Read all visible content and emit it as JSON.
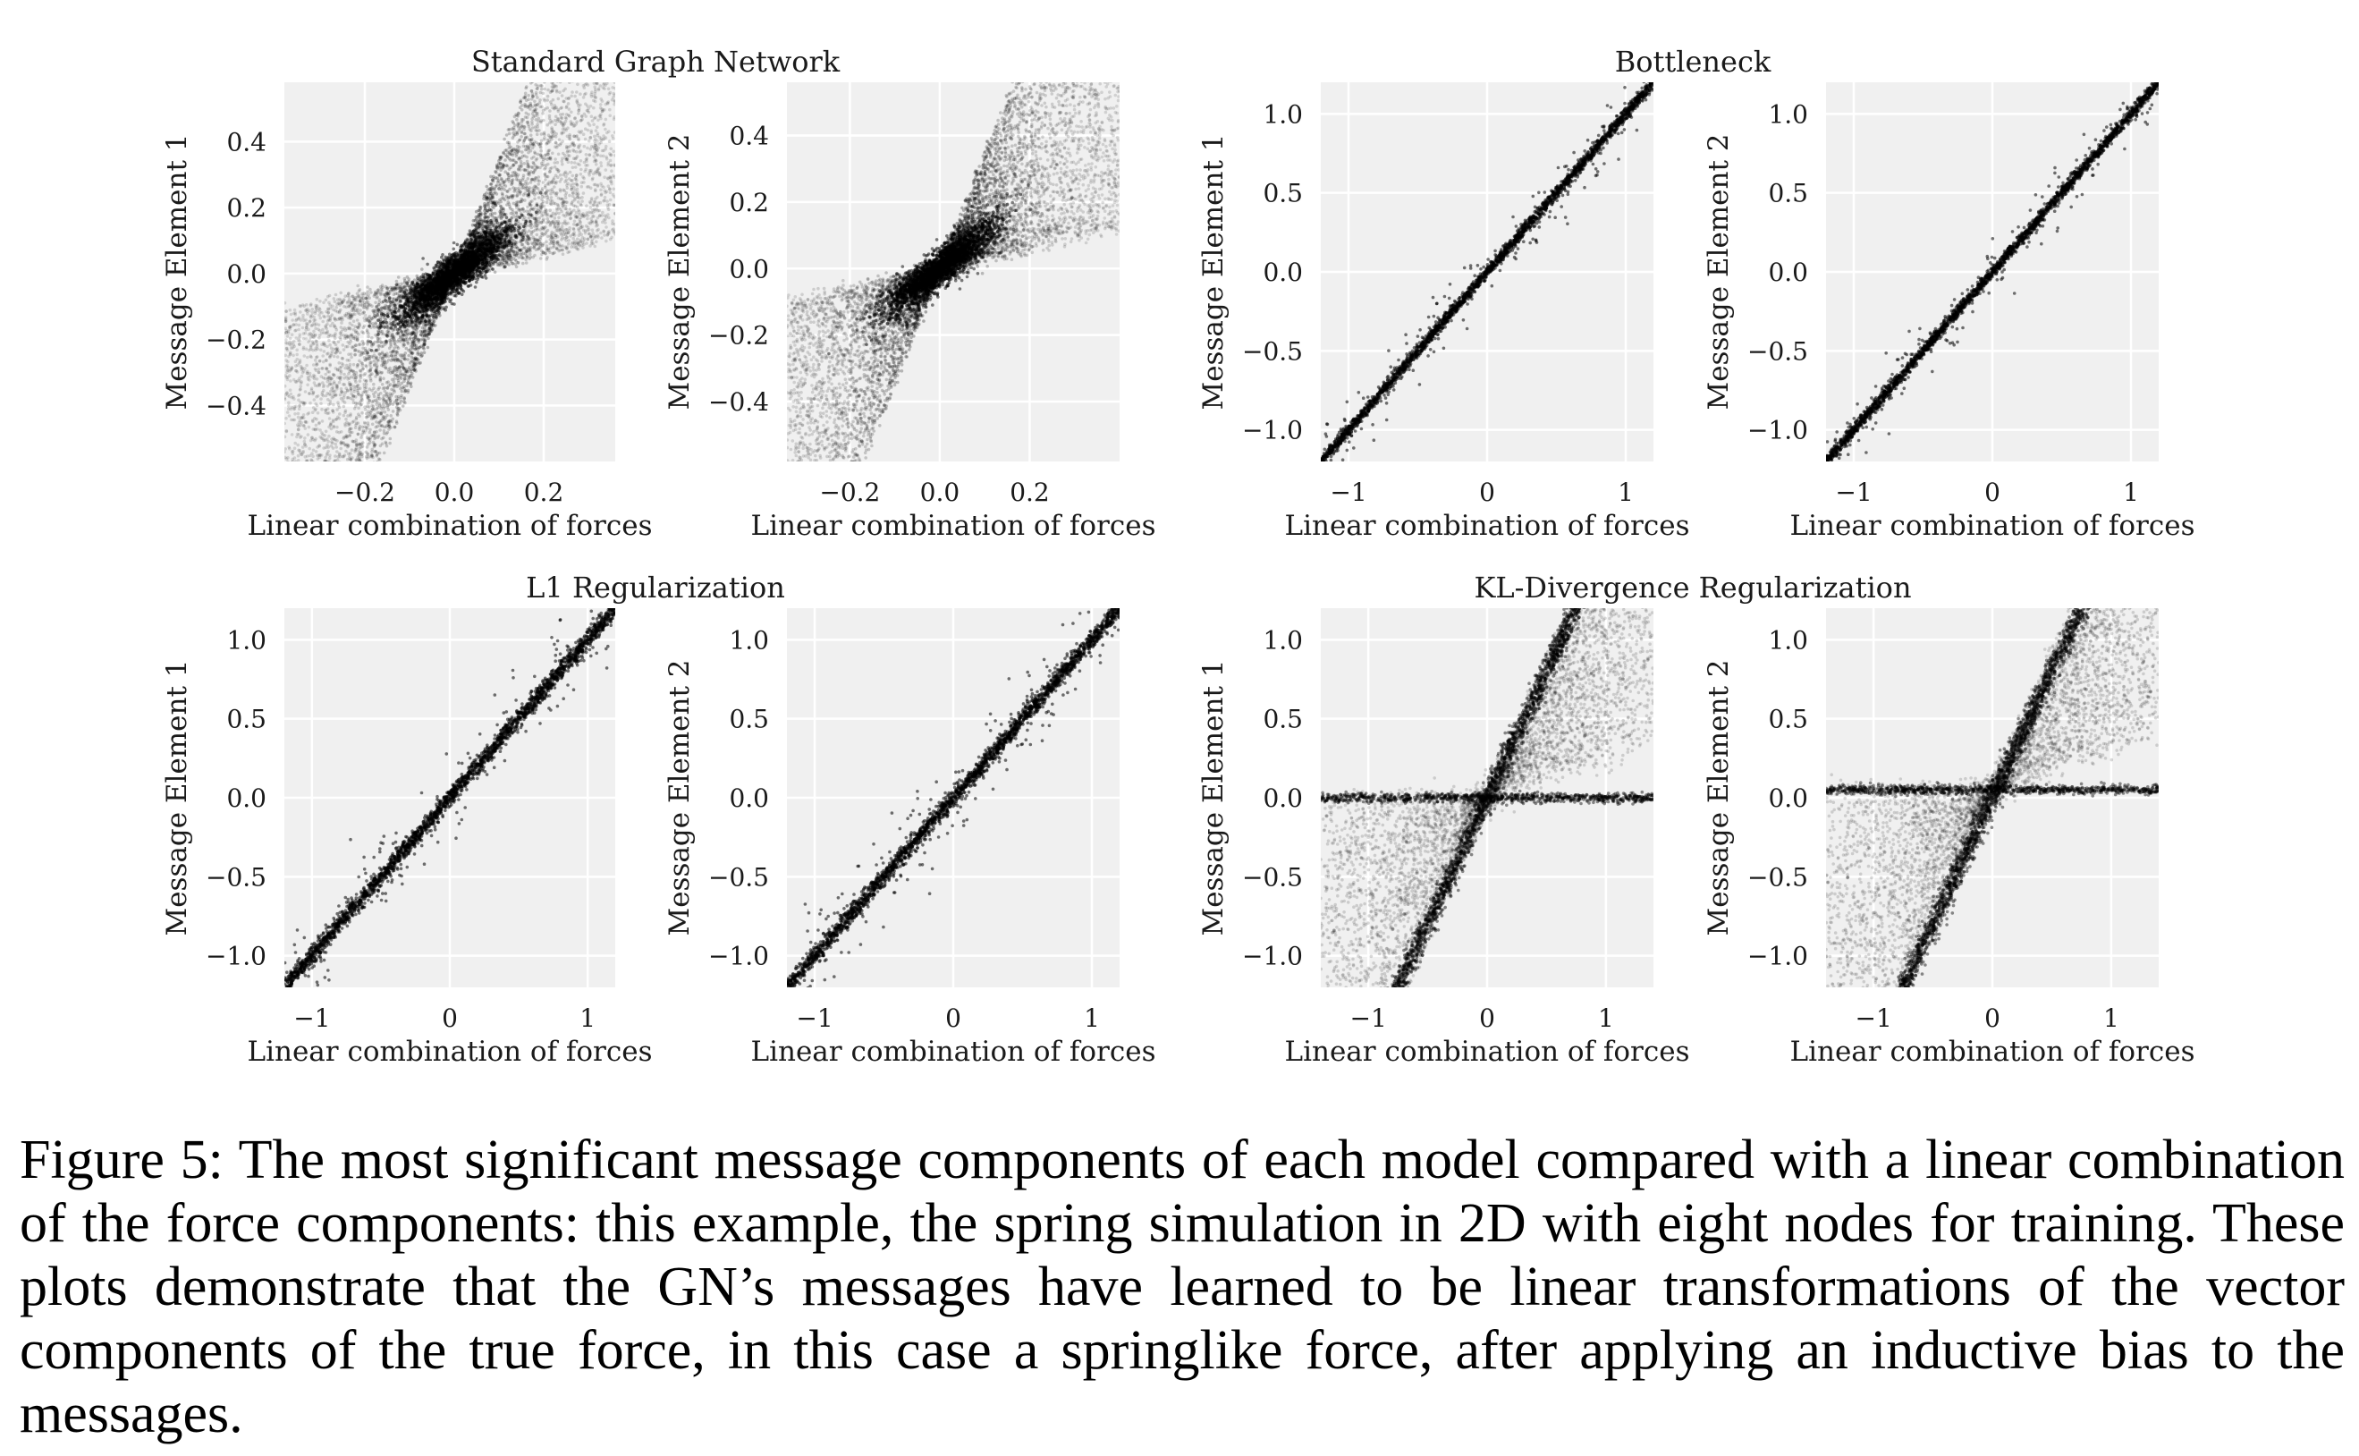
{
  "figure": {
    "groups": [
      {
        "title": "Standard Graph Network",
        "panels": [
          {
            "chart_data": {
              "type": "scatter",
              "xlabel": "Linear combination of forces",
              "ylabel": "Message Element 1",
              "xlim": [
                -0.38,
                0.36
              ],
              "ylim": [
                -0.57,
                0.58
              ],
              "xticks": [
                -0.2,
                0.0,
                0.2
              ],
              "xtick_labels": [
                "−0.2",
                "0.0",
                "0.2"
              ],
              "yticks": [
                -0.4,
                -0.2,
                0.0,
                0.2,
                0.4
              ],
              "ytick_labels": [
                "−0.4",
                "−0.2",
                "0.0",
                "0.2",
                "0.4"
              ],
              "grid": true,
              "pattern": "bowtie",
              "point_color": "#000000",
              "background": "#f0f0f0",
              "relation": {
                "slope_core": 1.0,
                "slope_low": 0.3,
                "slope_high": 3.5
              }
            }
          },
          {
            "chart_data": {
              "type": "scatter",
              "xlabel": "Linear combination of forces",
              "ylabel": "Message Element 2",
              "xlim": [
                -0.34,
                0.4
              ],
              "ylim": [
                -0.58,
                0.56
              ],
              "xticks": [
                -0.2,
                0.0,
                0.2
              ],
              "xtick_labels": [
                "−0.2",
                "0.0",
                "0.2"
              ],
              "yticks": [
                -0.4,
                -0.2,
                0.0,
                0.2,
                0.4
              ],
              "ytick_labels": [
                "−0.4",
                "−0.2",
                "0.0",
                "0.2",
                "0.4"
              ],
              "grid": true,
              "pattern": "bowtie",
              "point_color": "#000000",
              "background": "#f0f0f0",
              "relation": {
                "slope_core": 1.0,
                "slope_low": 0.3,
                "slope_high": 3.5
              }
            }
          }
        ]
      },
      {
        "title": "Bottleneck",
        "panels": [
          {
            "chart_data": {
              "type": "scatter",
              "xlabel": "Linear combination of forces",
              "ylabel": "Message Element 1",
              "xlim": [
                -1.2,
                1.2
              ],
              "ylim": [
                -1.2,
                1.2
              ],
              "xticks": [
                -1,
                0,
                1
              ],
              "xtick_labels": [
                "−1",
                "0",
                "1"
              ],
              "yticks": [
                -1.0,
                -0.5,
                0.0,
                0.5,
                1.0
              ],
              "ytick_labels": [
                "−1.0",
                "−0.5",
                "0.0",
                "0.5",
                "1.0"
              ],
              "grid": true,
              "pattern": "line",
              "point_color": "#000000",
              "background": "#f0f0f0",
              "relation": {
                "slope": 1.0,
                "spread": 0.02
              }
            }
          },
          {
            "chart_data": {
              "type": "scatter",
              "xlabel": "Linear combination of forces",
              "ylabel": "Message Element 2",
              "xlim": [
                -1.2,
                1.2
              ],
              "ylim": [
                -1.2,
                1.2
              ],
              "xticks": [
                -1,
                0,
                1
              ],
              "xtick_labels": [
                "−1",
                "0",
                "1"
              ],
              "yticks": [
                -1.0,
                -0.5,
                0.0,
                0.5,
                1.0
              ],
              "ytick_labels": [
                "−1.0",
                "−0.5",
                "0.0",
                "0.5",
                "1.0"
              ],
              "grid": true,
              "pattern": "line",
              "point_color": "#000000",
              "background": "#f0f0f0",
              "relation": {
                "slope": 1.0,
                "spread": 0.02
              }
            }
          }
        ]
      },
      {
        "title": "L1 Regularization",
        "panels": [
          {
            "chart_data": {
              "type": "scatter",
              "xlabel": "Linear combination of forces",
              "ylabel": "Message Element 1",
              "xlim": [
                -1.2,
                1.2
              ],
              "ylim": [
                -1.2,
                1.2
              ],
              "xticks": [
                -1,
                0,
                1
              ],
              "xtick_labels": [
                "−1",
                "0",
                "1"
              ],
              "yticks": [
                -1.0,
                -0.5,
                0.0,
                0.5,
                1.0
              ],
              "ytick_labels": [
                "−1.0",
                "−0.5",
                "0.0",
                "0.5",
                "1.0"
              ],
              "grid": true,
              "pattern": "line",
              "point_color": "#000000",
              "background": "#f0f0f0",
              "relation": {
                "slope": 1.0,
                "spread": 0.03
              }
            }
          },
          {
            "chart_data": {
              "type": "scatter",
              "xlabel": "Linear combination of forces",
              "ylabel": "Message Element 2",
              "xlim": [
                -1.2,
                1.2
              ],
              "ylim": [
                -1.2,
                1.2
              ],
              "xticks": [
                -1,
                0,
                1
              ],
              "xtick_labels": [
                "−1",
                "0",
                "1"
              ],
              "yticks": [
                -1.0,
                -0.5,
                0.0,
                0.5,
                1.0
              ],
              "ytick_labels": [
                "−1.0",
                "−0.5",
                "0.0",
                "0.5",
                "1.0"
              ],
              "grid": true,
              "pattern": "line",
              "point_color": "#000000",
              "background": "#f0f0f0",
              "relation": {
                "slope": 1.0,
                "spread": 0.03
              }
            }
          }
        ]
      },
      {
        "title": "KL-Divergence Regularization",
        "panels": [
          {
            "chart_data": {
              "type": "scatter",
              "xlabel": "Linear combination of forces",
              "ylabel": "Message Element 1",
              "xlim": [
                -1.4,
                1.4
              ],
              "ylim": [
                -1.2,
                1.2
              ],
              "xticks": [
                -1,
                0,
                1
              ],
              "xtick_labels": [
                "−1",
                "0",
                "1"
              ],
              "yticks": [
                -1.0,
                -0.5,
                0.0,
                0.5,
                1.0
              ],
              "ytick_labels": [
                "−1.0",
                "−0.5",
                "0.0",
                "0.5",
                "1.0"
              ],
              "grid": true,
              "pattern": "kl",
              "point_color": "#000000",
              "background": "#f0f0f0",
              "relation": {
                "slope_core": 1.6,
                "flat_level": 0.0
              }
            }
          },
          {
            "chart_data": {
              "type": "scatter",
              "xlabel": "Linear combination of forces",
              "ylabel": "Message Element 2",
              "xlim": [
                -1.4,
                1.4
              ],
              "ylim": [
                -1.2,
                1.2
              ],
              "xticks": [
                -1,
                0,
                1
              ],
              "xtick_labels": [
                "−1",
                "0",
                "1"
              ],
              "yticks": [
                -1.0,
                -0.5,
                0.0,
                0.5,
                1.0
              ],
              "ytick_labels": [
                "−1.0",
                "−0.5",
                "0.0",
                "0.5",
                "1.0"
              ],
              "grid": true,
              "pattern": "kl",
              "point_color": "#000000",
              "background": "#f0f0f0",
              "relation": {
                "slope_core": 1.6,
                "flat_level": 0.05
              }
            }
          }
        ]
      }
    ]
  },
  "caption": {
    "text": "Figure 5: The most significant message components of each model compared with a linear combination of the force components: this example, the spring simulation in 2D with eight nodes for training. These plots demonstrate that the GN’s messages have learned to be linear transformations of the vector components of the true force, in this case a springlike force, after applying an inductive bias to the messages."
  }
}
